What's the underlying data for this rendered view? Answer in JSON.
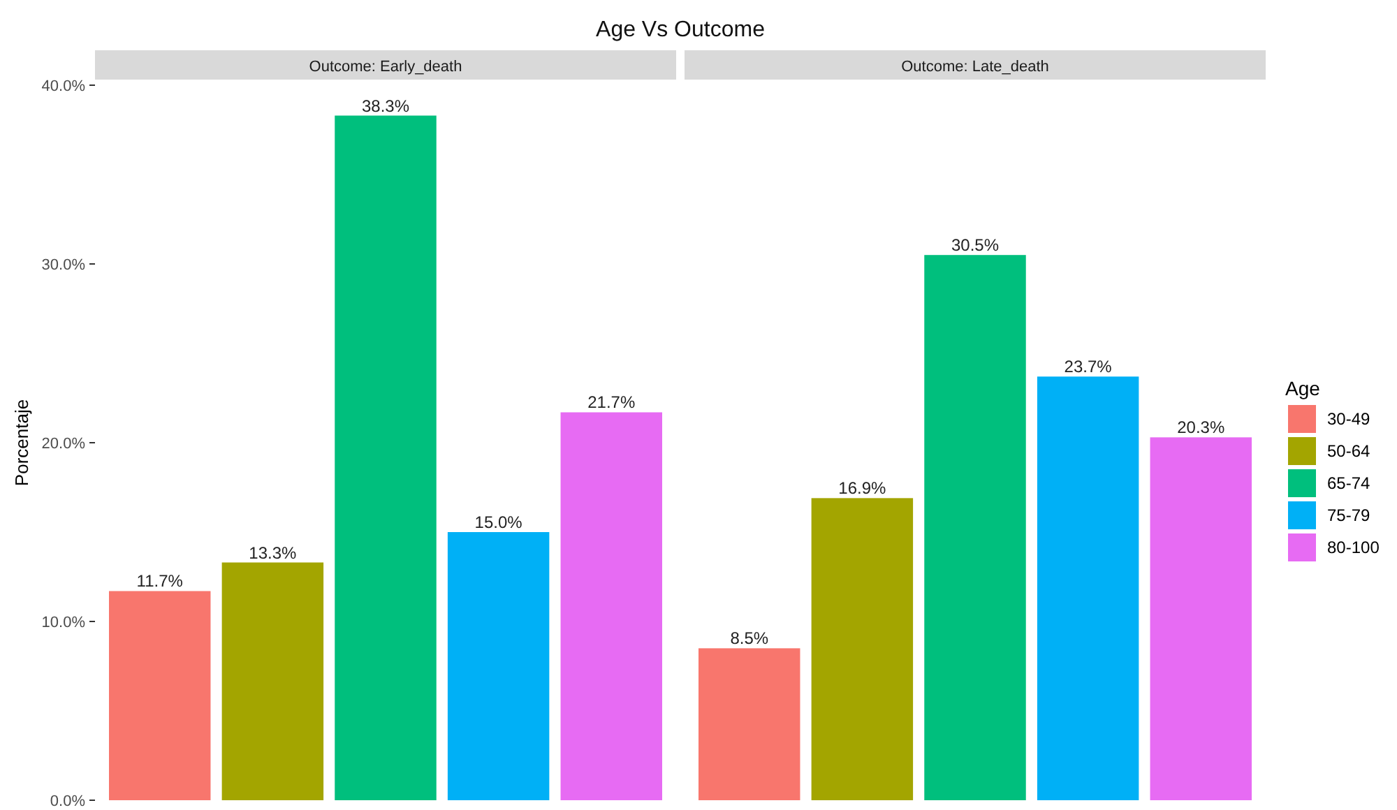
{
  "chart_data": {
    "type": "bar",
    "title": "Age Vs Outcome",
    "ylabel": "Porcentaje",
    "categories": [
      "Outcome: Early_death",
      "Outcome: Late_death"
    ],
    "ylim": [
      0,
      40
    ],
    "yticks": [
      {
        "value": 0,
        "label": "0.0%"
      },
      {
        "value": 10,
        "label": "10.0%"
      },
      {
        "value": 20,
        "label": "20.0%"
      },
      {
        "value": 30,
        "label": "30.0%"
      },
      {
        "value": 40,
        "label": "40.0%"
      }
    ],
    "legend": "right",
    "legend_title": "Age",
    "series": [
      {
        "name": "30-49",
        "color": "#f8766d",
        "values": [
          11.7,
          8.5
        ],
        "value_labels": [
          "11.7%",
          "8.5%"
        ]
      },
      {
        "name": "50-64",
        "color": "#a3a500",
        "values": [
          13.3,
          16.9
        ],
        "value_labels": [
          "13.3%",
          "16.9%"
        ]
      },
      {
        "name": "65-74",
        "color": "#00bf7d",
        "values": [
          38.3,
          30.5
        ],
        "value_labels": [
          "38.3%",
          "30.5%"
        ]
      },
      {
        "name": "75-79",
        "color": "#00b0f6",
        "values": [
          15.0,
          23.7
        ],
        "value_labels": [
          "15.0%",
          "23.7%"
        ]
      },
      {
        "name": "80-100",
        "color": "#e76bf3",
        "values": [
          21.7,
          20.3
        ],
        "value_labels": [
          "21.7%",
          "20.3%"
        ]
      }
    ]
  }
}
